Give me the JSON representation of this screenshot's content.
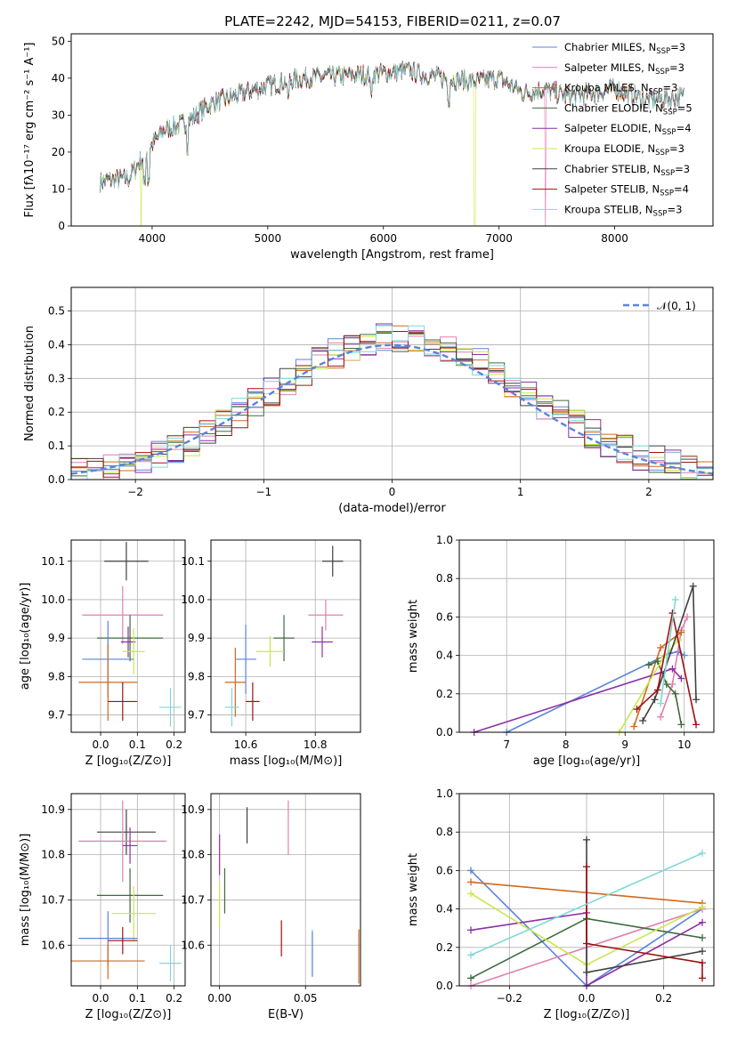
{
  "figure": {
    "title": "PLATE=2242, MJD=54153, FIBERID=0211, z=0.07"
  },
  "colors": {
    "chabrier_miles": "#5b84d8",
    "salpeter_miles": "#e8893a",
    "kroupa_miles": "#d2691e",
    "chabrier_elodie": "#3d6b3d",
    "salpeter_elodie": "#8e2fa8",
    "kroupa_elodie": "#c8e84a",
    "chabrier_stelib": "#404040",
    "salpeter_stelib": "#a01010",
    "kroupa_stelib": "#7fd8d8",
    "pink": "#e07fb0",
    "normal": "#5b84d8"
  },
  "legend": [
    {
      "label": "Chabrier MILES, N",
      "sub": "SSP",
      "tail": "=3",
      "color": "#5b84d8"
    },
    {
      "label": "Salpeter MILES, N",
      "sub": "SSP",
      "tail": "=3",
      "color": "#e07fb0"
    },
    {
      "label": "Kroupa MILES, N",
      "sub": "SSP",
      "tail": "=3",
      "color": "#d2691e"
    },
    {
      "label": "Chabrier ELODIE, N",
      "sub": "SSP",
      "tail": "=5",
      "color": "#3d6b3d"
    },
    {
      "label": "Salpeter ELODIE, N",
      "sub": "SSP",
      "tail": "=4",
      "color": "#8e2fa8"
    },
    {
      "label": "Kroupa ELODIE, N",
      "sub": "SSP",
      "tail": "=3",
      "color": "#c8e84a"
    },
    {
      "label": "Chabrier STELIB, N",
      "sub": "SSP",
      "tail": "=3",
      "color": "#404040"
    },
    {
      "label": "Salpeter STELIB, N",
      "sub": "SSP",
      "tail": "=4",
      "color": "#a01010"
    },
    {
      "label": "Kroupa STELIB, N",
      "sub": "SSP",
      "tail": "=3",
      "color": "#7fd8d8"
    }
  ],
  "chart_data": [
    {
      "type": "line",
      "panel": "spectrum",
      "xlabel": "wavelength [Angstrom, rest frame]",
      "ylabel": "Flux [fλ10⁻¹⁷ erg cm⁻² s⁻¹ A⁻¹]",
      "xlim": [
        3300,
        8850
      ],
      "ylim": [
        0,
        52
      ],
      "xticks": [
        4000,
        5000,
        6000,
        7000,
        8000
      ],
      "yticks": [
        0,
        10,
        20,
        30,
        40,
        50
      ],
      "continuum": {
        "x": [
          3550,
          3800,
          3950,
          4100,
          4300,
          4500,
          4800,
          5000,
          5300,
          5600,
          5900,
          6200,
          6500,
          6800,
          7000,
          7200,
          7400,
          7600,
          8000,
          8300,
          8600
        ],
        "y": [
          12,
          13,
          20,
          26,
          28,
          33,
          36,
          38,
          40,
          40.5,
          41,
          42,
          40,
          39,
          40,
          36,
          37,
          35,
          37,
          34,
          35
        ]
      },
      "legend_position": "top-right"
    },
    {
      "type": "line",
      "panel": "residual-histogram",
      "xlabel": "(data-model)/error",
      "ylabel": "Normed distribution",
      "xlim": [
        -2.5,
        2.5
      ],
      "ylim": [
        0,
        0.57
      ],
      "xticks": [
        -2,
        -1,
        0,
        1,
        2
      ],
      "yticks": [
        0,
        0.1,
        0.2,
        0.3,
        0.4,
        0.5
      ],
      "bin_width": 0.125,
      "normal_label": "𝒩(0, 1)",
      "grid": true
    },
    {
      "type": "scatter",
      "panel": "age-vs-Z",
      "xlabel": "Z [log₁₀(Z/Z⊙)]",
      "ylabel": "age  [log₁₀(age/yr)]",
      "xlim": [
        -0.08,
        0.23
      ],
      "ylim": [
        9.655,
        10.155
      ],
      "xticks": [
        0.0,
        0.1,
        0.2
      ],
      "yticks": [
        9.7,
        9.8,
        9.9,
        10.0,
        10.1
      ],
      "points": [
        {
          "x": 0.07,
          "y": 10.1,
          "xerr": 0.06,
          "yerr": 0.05,
          "color": "#404040"
        },
        {
          "x": 0.06,
          "y": 9.96,
          "xerr": 0.11,
          "yerr": 0.075,
          "color": "#e07fb0"
        },
        {
          "x": 0.08,
          "y": 9.9,
          "xerr": 0.09,
          "yerr": 0.06,
          "color": "#3d6b3d"
        },
        {
          "x": 0.075,
          "y": 9.89,
          "xerr": 0.02,
          "yerr": 0.04,
          "color": "#8e2fa8"
        },
        {
          "x": 0.09,
          "y": 9.865,
          "xerr": 0.03,
          "yerr": 0.06,
          "color": "#c8e84a"
        },
        {
          "x": 0.02,
          "y": 9.845,
          "xerr": 0.07,
          "yerr": 0.1,
          "color": "#5b84d8"
        },
        {
          "x": 0.02,
          "y": 9.785,
          "xerr": 0.08,
          "yerr": 0.1,
          "color": "#d2691e"
        },
        {
          "x": 0.06,
          "y": 9.735,
          "xerr": 0.04,
          "yerr": 0.05,
          "color": "#a01010"
        },
        {
          "x": 0.19,
          "y": 9.72,
          "xerr": 0.03,
          "yerr": 0.05,
          "color": "#7fd8d8"
        }
      ],
      "grid": true
    },
    {
      "type": "scatter",
      "panel": "age-vs-mass",
      "xlabel": "mass [log₁₀(M/M⊙)]",
      "ylabel": "",
      "xlim": [
        10.5,
        10.93
      ],
      "ylim": [
        9.655,
        10.155
      ],
      "xticks": [
        10.6,
        10.8
      ],
      "yticks": [
        9.7,
        9.8,
        9.9,
        10.0,
        10.1
      ],
      "points": [
        {
          "x": 10.85,
          "y": 10.1,
          "xerr": 0.03,
          "yerr": 0.04,
          "color": "#404040"
        },
        {
          "x": 10.83,
          "y": 9.96,
          "xerr": 0.05,
          "yerr": 0.04,
          "color": "#e07fb0"
        },
        {
          "x": 10.71,
          "y": 9.9,
          "xerr": 0.03,
          "yerr": 0.06,
          "color": "#3d6b3d"
        },
        {
          "x": 10.82,
          "y": 9.89,
          "xerr": 0.03,
          "yerr": 0.04,
          "color": "#8e2fa8"
        },
        {
          "x": 10.67,
          "y": 9.865,
          "xerr": 0.04,
          "yerr": 0.04,
          "color": "#c8e84a"
        },
        {
          "x": 10.6,
          "y": 9.845,
          "xerr": 0.03,
          "yerr": 0.09,
          "color": "#5b84d8"
        },
        {
          "x": 10.57,
          "y": 9.785,
          "xerr": 0.03,
          "yerr": 0.09,
          "color": "#d2691e"
        },
        {
          "x": 10.62,
          "y": 9.735,
          "xerr": 0.02,
          "yerr": 0.05,
          "color": "#a01010"
        },
        {
          "x": 10.56,
          "y": 9.72,
          "xerr": 0.02,
          "yerr": 0.05,
          "color": "#7fd8d8"
        }
      ],
      "grid": true
    },
    {
      "type": "line",
      "panel": "mass-weight-vs-age",
      "xlabel": "age  [log₁₀(age/yr)]",
      "ylabel": "mass weight",
      "xlim": [
        6.2,
        10.5
      ],
      "ylim": [
        0,
        1.0
      ],
      "xticks": [
        7,
        8,
        9,
        10
      ],
      "yticks": [
        0.0,
        0.2,
        0.4,
        0.6,
        0.8,
        1.0
      ],
      "series": [
        {
          "color": "#5b84d8",
          "x": [
            7.0,
            9.75,
            9.9,
            10.0
          ],
          "y": [
            0.0,
            0.41,
            0.42,
            0.4
          ]
        },
        {
          "color": "#e07fb0",
          "x": [
            9.6,
            9.8,
            9.95,
            10.05
          ],
          "y": [
            0.08,
            0.25,
            0.53,
            0.6
          ]
        },
        {
          "color": "#d2691e",
          "x": [
            9.15,
            9.6,
            9.95
          ],
          "y": [
            0.03,
            0.44,
            0.52
          ]
        },
        {
          "color": "#3d6b3d",
          "x": [
            9.4,
            9.55,
            9.7,
            9.85,
            9.95
          ],
          "y": [
            0.35,
            0.37,
            0.25,
            0.2,
            0.04
          ]
        },
        {
          "color": "#8e2fa8",
          "x": [
            6.45,
            9.8,
            9.95
          ],
          "y": [
            0.0,
            0.33,
            0.28
          ]
        },
        {
          "color": "#c8e84a",
          "x": [
            8.9,
            9.65,
            9.9
          ],
          "y": [
            0.0,
            0.39,
            0.48
          ]
        },
        {
          "color": "#404040",
          "x": [
            9.3,
            9.5,
            10.15,
            10.2
          ],
          "y": [
            0.06,
            0.17,
            0.76,
            0.17
          ]
        },
        {
          "color": "#a01010",
          "x": [
            9.2,
            9.55,
            9.8,
            10.2
          ],
          "y": [
            0.12,
            0.22,
            0.62,
            0.04
          ]
        },
        {
          "color": "#7fd8d8",
          "x": [
            9.6,
            9.85
          ],
          "y": [
            0.15,
            0.69
          ]
        }
      ],
      "grid": true
    },
    {
      "type": "scatter",
      "panel": "mass-vs-Z",
      "xlabel": "Z [log₁₀(Z/Z⊙)]",
      "ylabel": "mass [log₁₀(M/M⊙)]",
      "xlim": [
        -0.08,
        0.23
      ],
      "ylim": [
        10.51,
        10.935
      ],
      "xticks": [
        0.0,
        0.1,
        0.2
      ],
      "yticks": [
        10.6,
        10.7,
        10.8,
        10.9
      ],
      "points": [
        {
          "x": 0.07,
          "y": 10.85,
          "xerr": 0.08,
          "yerr": 0.05,
          "color": "#404040"
        },
        {
          "x": 0.06,
          "y": 10.83,
          "xerr": 0.12,
          "yerr": 0.09,
          "color": "#e07fb0"
        },
        {
          "x": 0.08,
          "y": 10.82,
          "xerr": 0.02,
          "yerr": 0.04,
          "color": "#8e2fa8"
        },
        {
          "x": 0.08,
          "y": 10.71,
          "xerr": 0.09,
          "yerr": 0.06,
          "color": "#3d6b3d"
        },
        {
          "x": 0.09,
          "y": 10.67,
          "xerr": 0.06,
          "yerr": 0.06,
          "color": "#c8e84a"
        },
        {
          "x": 0.02,
          "y": 10.615,
          "xerr": 0.08,
          "yerr": 0.06,
          "color": "#5b84d8"
        },
        {
          "x": 0.06,
          "y": 10.61,
          "xerr": 0.04,
          "yerr": 0.03,
          "color": "#a01010"
        },
        {
          "x": 0.02,
          "y": 10.565,
          "xerr": 0.1,
          "yerr": 0.04,
          "color": "#d2691e"
        },
        {
          "x": 0.19,
          "y": 10.56,
          "xerr": 0.03,
          "yerr": 0.04,
          "color": "#7fd8d8"
        }
      ],
      "grid": true
    },
    {
      "type": "scatter",
      "panel": "mass-vs-EBV",
      "xlabel": "E(B-V)",
      "ylabel": "",
      "xlim": [
        -0.005,
        0.082
      ],
      "ylim": [
        10.51,
        10.935
      ],
      "xticks": [
        0.0,
        0.05
      ],
      "xtick_labels": [
        "0.00",
        "0.05"
      ],
      "yticks": [
        10.6,
        10.7,
        10.8,
        10.9
      ],
      "points": [
        {
          "x": 0.016,
          "y": 10.865,
          "yerr": 0.04,
          "color": "#404040"
        },
        {
          "x": 0.04,
          "y": 10.86,
          "yerr": 0.06,
          "color": "#e07fb0"
        },
        {
          "x": 0.0,
          "y": 10.8,
          "yerr": 0.045,
          "color": "#8e2fa8"
        },
        {
          "x": 0.003,
          "y": 10.72,
          "yerr": 0.05,
          "color": "#3d6b3d"
        },
        {
          "x": 0.0,
          "y": 10.69,
          "yerr": 0.05,
          "color": "#c8e84a"
        },
        {
          "x": 0.036,
          "y": 10.615,
          "yerr": 0.04,
          "color": "#a01010"
        },
        {
          "x": 0.054,
          "y": 10.585,
          "yerr": 0.05,
          "color": "#7fd8d8"
        },
        {
          "x": 0.054,
          "y": 10.58,
          "yerr": 0.05,
          "color": "#5b84d8"
        },
        {
          "x": 0.081,
          "y": 10.575,
          "yerr": 0.06,
          "color": "#d2691e"
        }
      ],
      "grid": true
    },
    {
      "type": "line",
      "panel": "mass-weight-vs-Z",
      "xlabel": "Z [log₁₀(Z/Z⊙)]",
      "ylabel": "mass weight",
      "xlim": [
        -0.33,
        0.33
      ],
      "ylim": [
        0,
        1.0
      ],
      "xticks": [
        -0.2,
        0.0,
        0.2
      ],
      "xtick_labels": [
        "−0.2",
        "0.0",
        "0.2"
      ],
      "yticks": [
        0.0,
        0.2,
        0.4,
        0.6,
        0.8,
        1.0
      ],
      "series": [
        {
          "color": "#5b84d8",
          "x": [
            -0.3,
            0.0,
            0.3
          ],
          "y": [
            0.6,
            0.0,
            0.4
          ]
        },
        {
          "color": "#e07fb0",
          "x": [
            -0.3,
            0.3
          ],
          "y": [
            0.0,
            0.4
          ]
        },
        {
          "color": "#d2691e",
          "x": [
            -0.3,
            0.3
          ],
          "y": [
            0.54,
            0.43
          ]
        },
        {
          "color": "#3d6b3d",
          "x": [
            -0.3,
            0.0,
            0.3
          ],
          "y": [
            0.04,
            0.35,
            0.25
          ]
        },
        {
          "color": "#8e2fa8",
          "x": [
            -0.3,
            0.0,
            0.0,
            0.3
          ],
          "y": [
            0.29,
            0.38,
            0.0,
            0.33
          ]
        },
        {
          "color": "#c8e84a",
          "x": [
            -0.3,
            0.0,
            0.3
          ],
          "y": [
            0.48,
            0.11,
            0.41
          ]
        },
        {
          "color": "#404040",
          "x": [
            0.0,
            0.0,
            0.3
          ],
          "y": [
            0.76,
            0.07,
            0.18
          ]
        },
        {
          "color": "#a01010",
          "x": [
            0.0,
            0.0,
            0.3,
            0.3
          ],
          "y": [
            0.62,
            0.22,
            0.12,
            0.04
          ]
        },
        {
          "color": "#7fd8d8",
          "x": [
            -0.3,
            0.3
          ],
          "y": [
            0.16,
            0.69
          ]
        }
      ],
      "grid": true
    }
  ]
}
